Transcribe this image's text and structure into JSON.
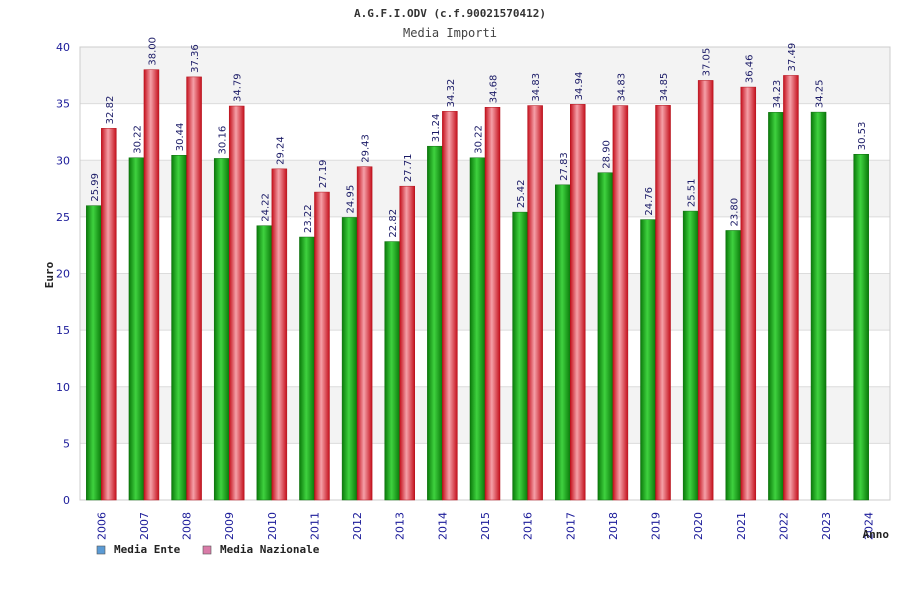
{
  "chart_data": {
    "type": "bar",
    "title": "A.G.F.I.ODV (c.f.90021570412)",
    "subtitle": "Media Importi",
    "xlabel": "Anno",
    "ylabel": "Euro",
    "ylim": [
      0,
      40
    ],
    "ytick_step": 5,
    "yticks": [
      "0",
      "5",
      "10",
      "15",
      "20",
      "25",
      "30",
      "35",
      "40"
    ],
    "grid": true,
    "legend_position": "bottom-left",
    "categories": [
      "2006",
      "2007",
      "2008",
      "2009",
      "2010",
      "2011",
      "2012",
      "2013",
      "2014",
      "2015",
      "2016",
      "2017",
      "2018",
      "2019",
      "2020",
      "2021",
      "2022",
      "2023",
      "2024"
    ],
    "series": [
      {
        "name": "Media Ente",
        "legend_color": "#5b9bd5",
        "bar_color": "#1aaa1a",
        "values": [
          25.99,
          30.22,
          30.44,
          30.16,
          24.22,
          23.22,
          24.95,
          22.82,
          31.24,
          30.22,
          25.42,
          27.83,
          28.9,
          24.76,
          25.51,
          23.8,
          34.23,
          34.25,
          30.53
        ],
        "labels": [
          "25.99",
          "30.22",
          "30.44",
          "30.16",
          "24.22",
          "23.22",
          "24.95",
          "22.82",
          "31.24",
          "30.22",
          "25.42",
          "27.83",
          "28.90",
          "24.76",
          "25.51",
          "23.80",
          "34.23",
          "34.25",
          "30.53"
        ]
      },
      {
        "name": "Media Nazionale",
        "legend_color": "#d97ba8",
        "bar_color": "#e8303a",
        "values": [
          32.82,
          38.0,
          37.36,
          34.79,
          29.24,
          27.19,
          29.43,
          27.71,
          34.32,
          34.68,
          34.83,
          34.94,
          34.83,
          34.85,
          37.05,
          36.46,
          37.49,
          null,
          null
        ],
        "labels": [
          "32.82",
          "38.00",
          "37.36",
          "34.79",
          "29.24",
          "27.19",
          "29.43",
          "27.71",
          "34.32",
          "34.68",
          "34.83",
          "34.94",
          "34.83",
          "34.85",
          "37.05",
          "36.46",
          "37.49",
          null,
          null
        ]
      }
    ]
  }
}
